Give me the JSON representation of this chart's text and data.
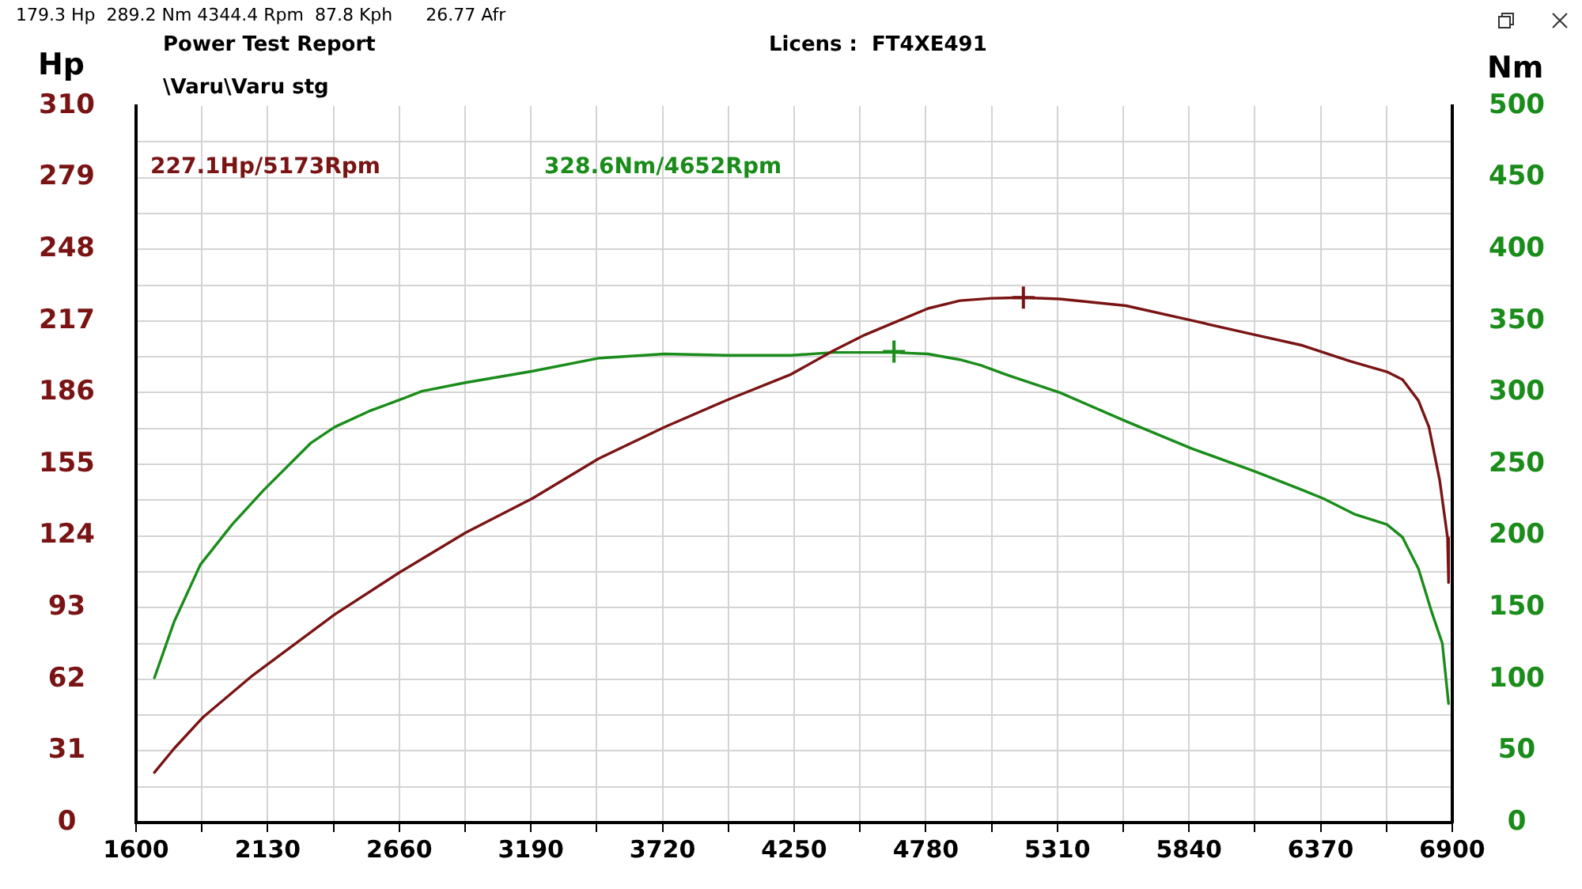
{
  "chart_data": {
    "type": "line",
    "title": "Power Test Report",
    "subtitle": "\\Varu\\Varu stg",
    "ylabel": "Hp",
    "y2label": "Nm",
    "annotations": [
      "227.1Hp/5173Rpm",
      "328.6Nm/4652Rpm",
      "Licens :  FT4XE491",
      "179.3 Hp  289.2 Nm 4344.4 Rpm  87.8 Kph      26.77 Afr"
    ],
    "xlim": [
      1600,
      6900
    ],
    "xticks": [
      1600,
      {
        "value": 1865,
        "label": null
      },
      2130,
      {
        "value": 2395,
        "label": null
      },
      2660,
      {
        "value": 2925,
        "label": null
      },
      3190,
      {
        "value": 3455,
        "label": null
      },
      3720,
      {
        "value": 3985,
        "label": null
      },
      4250,
      {
        "value": 4515,
        "label": null
      },
      4780,
      {
        "value": 5045,
        "label": null
      },
      5310,
      {
        "value": 5575,
        "label": null
      },
      5840,
      {
        "value": 6105,
        "label": null
      },
      6370,
      {
        "value": 6635,
        "label": null
      },
      6900
    ],
    "ylim": [
      0,
      310
    ],
    "yticks": [
      0,
      {
        "value": 15.5,
        "label": null
      },
      31,
      {
        "value": 46.5,
        "label": null
      },
      62,
      {
        "value": 77.5,
        "label": null
      },
      93,
      {
        "value": 108.5,
        "label": null
      },
      124,
      {
        "value": 139.5,
        "label": null
      },
      155,
      {
        "value": 170.5,
        "label": null
      },
      186,
      {
        "value": 201.5,
        "label": null
      },
      217,
      {
        "value": 232.5,
        "label": null
      },
      248,
      {
        "value": 263.5,
        "label": null
      },
      279,
      {
        "value": 294.5,
        "label": null
      },
      310
    ],
    "y2lim": [
      0,
      500
    ],
    "y2ticks": [
      0,
      50,
      100,
      150,
      200,
      250,
      300,
      350,
      400,
      450,
      500
    ],
    "grid": true,
    "marker": "none",
    "series": [
      {
        "color": "#7a1414",
        "x": [
          1674,
          1753,
          1870,
          2071,
          2401,
          2662,
          2927,
          3197,
          3462,
          3728,
          3982,
          4237,
          4407,
          4535,
          4662,
          4789,
          4917,
          5044,
          5173,
          5320,
          5586,
          5851,
          6106,
          6297,
          6488,
          6637,
          6700,
          6764,
          6806,
          6849,
          6881,
          6885
        ],
        "values": [
          21.7,
          32,
          45.6,
          63.8,
          90.1,
          108.3,
          125.4,
          140.3,
          157.4,
          171.1,
          182.9,
          193.9,
          204.1,
          211,
          216.7,
          222.4,
          225.8,
          226.8,
          227.1,
          226.5,
          223.6,
          217.2,
          211,
          206.4,
          199.6,
          195,
          191.6,
          182.5,
          171.1,
          148.3,
          123.2,
          103.8
        ]
      },
      {
        "color": "#1a8c1a",
        "axis": "y2",
        "x": [
          1674,
          1753,
          1859,
          1987,
          2114,
          2305,
          2400,
          2538,
          2662,
          2751,
          2927,
          3197,
          3462,
          3728,
          3982,
          4237,
          4407,
          4652,
          4789,
          4917,
          5002,
          5129,
          5320,
          5586,
          5851,
          6106,
          6297,
          6382,
          6509,
          6637,
          6700,
          6764,
          6817,
          6860,
          6885
        ],
        "values": [
          101,
          140,
          180,
          208,
          232,
          265,
          276,
          287,
          295,
          301,
          307,
          315,
          324,
          327,
          326,
          326,
          328,
          328,
          327,
          323,
          319,
          311,
          300,
          280,
          261,
          245,
          232,
          226,
          215,
          208,
          199,
          177,
          147,
          125,
          83
        ]
      },
      {
        "type": "scatter",
        "marker": "cross",
        "color": "#7a1414",
        "x": [
          5173
        ],
        "values": [
          227.1
        ]
      },
      {
        "type": "scatter",
        "marker": "cross",
        "color": "#1a8c1a",
        "axis": "y2",
        "x": [
          4652
        ],
        "values": [
          328.6
        ]
      }
    ]
  }
}
